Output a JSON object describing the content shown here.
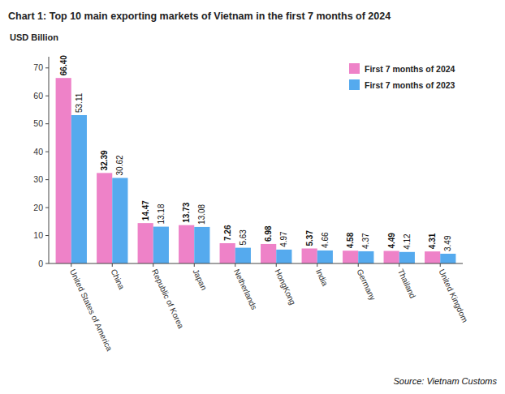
{
  "chart_data": {
    "type": "bar",
    "title": "Chart 1: Top 10 main exporting markets of Vietnam in the first 7 months of 2024",
    "ylabel": "USD Billion",
    "annotation": "Source: Vietnam Customs",
    "categories": [
      "United States of America",
      "China",
      "Republic of Korea",
      "Japan",
      "Netherlands",
      "HongKong",
      "India",
      "Germany",
      "Thailand",
      "United Kingdom"
    ],
    "series": [
      {
        "name": "First 7 months of 2024",
        "color": "#EE82C8",
        "values": [
          66.4,
          32.39,
          14.47,
          13.73,
          7.26,
          6.98,
          5.37,
          4.58,
          4.49,
          4.31
        ],
        "value_labels": [
          "66.40",
          "32.39",
          "14.47",
          "13.73",
          "7.26",
          "6.98",
          "5.37",
          "4.58",
          "4.49",
          "4.31"
        ]
      },
      {
        "name": "First 7 months of 2023",
        "color": "#55AAEE",
        "values": [
          53.11,
          30.62,
          13.18,
          13.08,
          5.63,
          4.97,
          4.66,
          4.37,
          4.12,
          3.49
        ],
        "value_labels": [
          "53.11",
          "30.62",
          "13.18",
          "13.08",
          "5.63",
          "4.97",
          "4.66",
          "4.37",
          "4.12",
          "3.49"
        ]
      }
    ],
    "ylim": [
      0,
      74
    ],
    "yticks": [
      0,
      10,
      20,
      30,
      40,
      50,
      60,
      70
    ],
    "grid": false,
    "legend": "upper right",
    "data_labels": true
  }
}
